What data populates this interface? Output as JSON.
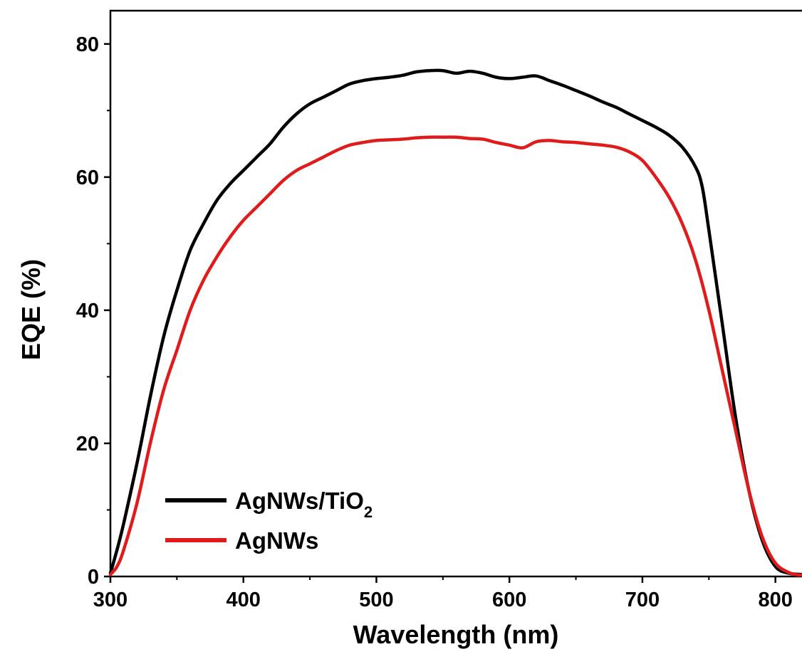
{
  "chart_data": {
    "type": "line",
    "xlabel": "Wavelength (nm)",
    "ylabel": "EQE (%)",
    "xlim": [
      300,
      820
    ],
    "ylim": [
      0,
      85
    ],
    "xticks": [
      300,
      400,
      500,
      600,
      700,
      800
    ],
    "yticks": [
      0,
      20,
      40,
      60,
      80
    ],
    "xtick_labels": [
      "300",
      "400",
      "500",
      "600",
      "700",
      "800"
    ],
    "ytick_labels": [
      "0",
      "20",
      "40",
      "60",
      "80"
    ],
    "grid": false,
    "legend_position": "bottom-left",
    "series": [
      {
        "name": "AgNWs/TiO",
        "name_subscript": "2",
        "color": "#000000",
        "x": [
          300,
          305,
          310,
          320,
          330,
          340,
          350,
          360,
          370,
          380,
          390,
          400,
          410,
          420,
          430,
          440,
          450,
          460,
          470,
          480,
          490,
          500,
          510,
          520,
          530,
          540,
          550,
          560,
          570,
          580,
          590,
          600,
          610,
          620,
          630,
          640,
          650,
          660,
          670,
          680,
          690,
          700,
          710,
          720,
          730,
          740,
          745,
          750,
          760,
          770,
          780,
          790,
          800,
          810,
          820
        ],
        "y": [
          0.5,
          4,
          8,
          17,
          27,
          36,
          43,
          49,
          53,
          56.5,
          59,
          61,
          63,
          65,
          67.5,
          69.5,
          71,
          72,
          73,
          74,
          74.5,
          74.8,
          75,
          75.3,
          75.8,
          76,
          76,
          75.6,
          75.9,
          75.6,
          75,
          74.8,
          75,
          75.2,
          74.5,
          73.8,
          73,
          72.2,
          71.3,
          70.5,
          69.5,
          68.5,
          67.5,
          66.3,
          64.5,
          61.5,
          58.5,
          52,
          38,
          24,
          13,
          5.5,
          1.5,
          0.5,
          0.3
        ]
      },
      {
        "name": "AgNWs",
        "color": "#e01b1b",
        "x": [
          300,
          305,
          310,
          320,
          330,
          340,
          350,
          360,
          370,
          380,
          390,
          400,
          410,
          420,
          430,
          440,
          450,
          460,
          470,
          480,
          490,
          500,
          510,
          520,
          530,
          540,
          550,
          560,
          570,
          580,
          590,
          600,
          610,
          620,
          630,
          640,
          650,
          660,
          670,
          680,
          690,
          700,
          710,
          720,
          730,
          740,
          750,
          760,
          770,
          780,
          790,
          800,
          810,
          815,
          820
        ],
        "y": [
          0.3,
          1.5,
          4,
          11,
          20,
          28,
          34,
          40,
          44.5,
          48,
          51,
          53.5,
          55.5,
          57.5,
          59.5,
          61,
          62,
          63,
          64,
          64.8,
          65.2,
          65.5,
          65.6,
          65.7,
          65.9,
          66,
          66,
          66,
          65.8,
          65.7,
          65.2,
          64.8,
          64.4,
          65.3,
          65.5,
          65.3,
          65.2,
          65,
          64.8,
          64.5,
          63.8,
          62.5,
          60,
          57,
          53,
          47.5,
          40,
          31,
          22,
          13,
          6,
          2,
          0.6,
          0.3,
          0.2
        ]
      }
    ]
  }
}
